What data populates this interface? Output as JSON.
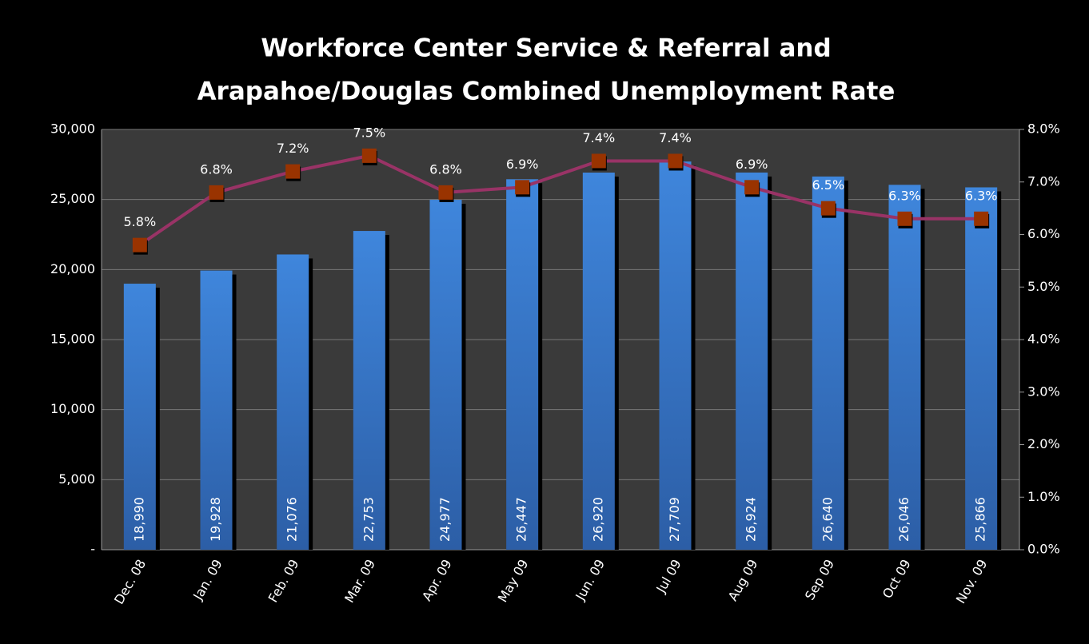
{
  "chart_data": {
    "type": "bar",
    "title": [
      "Workforce Center Service & Referral  and",
      "Arapahoe/Douglas Combined Unemployment Rate"
    ],
    "categories": [
      "Dec. 08",
      "Jan. 09",
      "Feb. 09",
      "Mar. 09",
      "Apr. 09",
      "May 09",
      "Jun. 09",
      "Jul 09",
      "Aug 09",
      "Sep 09",
      "Oct 09",
      "Nov. 09"
    ],
    "series": [
      {
        "type": "bar",
        "color": "#3b7fd0",
        "values": [
          18990,
          19928,
          21076,
          22753,
          24977,
          26447,
          26920,
          27709,
          26924,
          26640,
          26046,
          25866
        ],
        "value_labels": [
          "18,990",
          "19,928",
          "21,076",
          "22,753",
          "24,977",
          "26,447",
          "26,920",
          "27,709",
          "26,924",
          "26,640",
          "26,046",
          "25,866"
        ]
      },
      {
        "type": "line",
        "axis": "y2",
        "color": "#993366",
        "marker_color": "#993300",
        "values": [
          5.8,
          6.8,
          7.2,
          7.5,
          6.8,
          6.9,
          7.4,
          7.4,
          6.9,
          6.5,
          6.3,
          6.3
        ],
        "value_labels": [
          "5.8%",
          "6.8%",
          "7.2%",
          "7.5%",
          "6.8%",
          "6.9%",
          "7.4%",
          "7.4%",
          "6.9%",
          "6.5%",
          "6.3%",
          "6.3%"
        ]
      }
    ],
    "ylim": [
      0,
      30000
    ],
    "yticks": [
      {
        "value": 0,
        "label": "-"
      },
      {
        "value": 5000,
        "label": "5,000"
      },
      {
        "value": 10000,
        "label": "10,000"
      },
      {
        "value": 15000,
        "label": "15,000"
      },
      {
        "value": 20000,
        "label": "20,000"
      },
      {
        "value": 25000,
        "label": "25,000"
      },
      {
        "value": 30000,
        "label": "30,000"
      }
    ],
    "y2lim": [
      0,
      8
    ],
    "y2ticks": [
      {
        "value": 0,
        "label": "0.0%"
      },
      {
        "value": 1,
        "label": "1.0%"
      },
      {
        "value": 2,
        "label": "2.0%"
      },
      {
        "value": 3,
        "label": "3.0%"
      },
      {
        "value": 4,
        "label": "4.0%"
      },
      {
        "value": 5,
        "label": "5.0%"
      },
      {
        "value": 6,
        "label": "6.0%"
      },
      {
        "value": 7,
        "label": "7.0%"
      },
      {
        "value": 8,
        "label": "8.0%"
      }
    ],
    "grid": true
  }
}
